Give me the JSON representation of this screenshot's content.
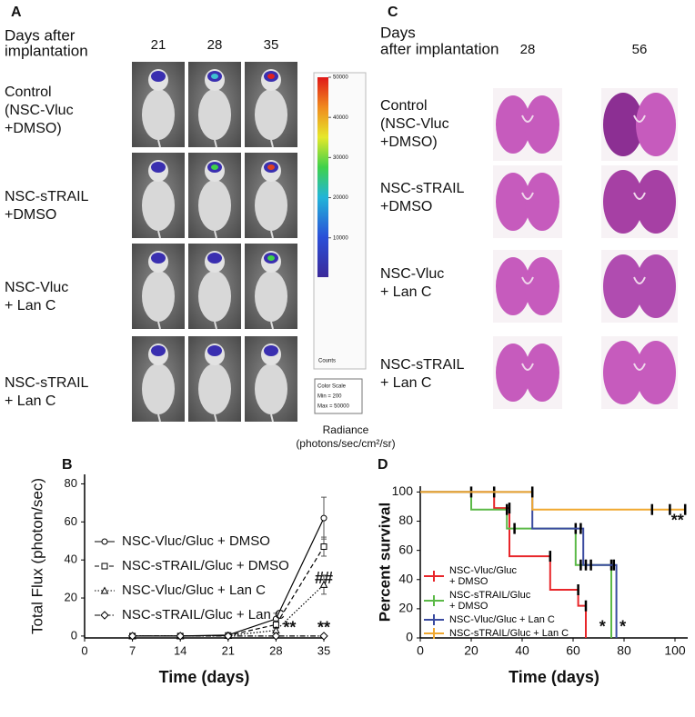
{
  "panel_a": {
    "letter": "A",
    "header": [
      "Days after",
      "implantation"
    ],
    "columns": [
      "21",
      "28",
      "35"
    ],
    "rows": [
      [
        "Control",
        "(NSC-Vluc",
        "+DMSO)"
      ],
      [
        "NSC-sTRAIL",
        "+DMSO"
      ],
      [
        "NSC-Vluc",
        "+ Lan C"
      ],
      [
        "NSC-sTRAIL",
        "+ Lan C"
      ]
    ],
    "colorbar": {
      "ylim": [
        200,
        50000
      ],
      "yticks": [
        10000,
        20000,
        30000,
        40000,
        50000
      ],
      "unit": "Counts",
      "scale_box": [
        "Color Scale",
        "Min = 200",
        "Max = 50000"
      ],
      "label": [
        "Radiance",
        "(photons/sec/cm²/sr)"
      ]
    }
  },
  "panel_c": {
    "letter": "C",
    "header": [
      "Days",
      "after implantation"
    ],
    "columns": [
      "28",
      "56"
    ],
    "rows": [
      [
        "Control",
        "(NSC-Vluc",
        "+DMSO)"
      ],
      [
        "NSC-sTRAIL",
        "+DMSO"
      ],
      [
        "NSC-Vluc",
        "+ Lan C"
      ],
      [
        "NSC-sTRAIL",
        "+ Lan C"
      ]
    ]
  },
  "chart_data": [
    {
      "type": "line",
      "letter": "B",
      "x_label": "Time (days)",
      "y_label": "Total Flux (photon/sec)",
      "x": [
        7,
        14,
        21,
        28,
        35
      ],
      "xlim": [
        0,
        35
      ],
      "xticks": [
        0,
        7,
        14,
        21,
        28,
        35
      ],
      "ylim": [
        -1,
        85
      ],
      "yticks": [
        0,
        20,
        40,
        60,
        80
      ],
      "series": [
        {
          "name": "NSC-Vluc/Gluc + DMSO",
          "color": "#000000",
          "dash": "solid",
          "marker": "circle",
          "values": [
            0,
            0,
            0.5,
            9,
            62
          ],
          "errors": [
            0,
            0,
            0,
            3,
            11
          ]
        },
        {
          "name": "NSC-sTRAIL/Gluc + DMSO",
          "color": "#000000",
          "dash": "dashed",
          "marker": "square",
          "values": [
            0,
            0,
            0.3,
            6,
            47
          ],
          "errors": [
            0,
            0,
            0,
            2,
            5
          ]
        },
        {
          "name": "NSC-Vluc/Gluc + Lan C",
          "color": "#000000",
          "dash": "dotted",
          "marker": "triangle",
          "values": [
            0,
            0,
            0.2,
            3,
            27
          ],
          "errors": [
            0,
            0,
            0,
            1,
            5
          ]
        },
        {
          "name": "NSC-sTRAIL/Gluc + Lan C",
          "color": "#000000",
          "dash": "dashdot",
          "marker": "diamond",
          "values": [
            0,
            0,
            0,
            0,
            0
          ],
          "errors": [
            0,
            0,
            0,
            0,
            0
          ]
        }
      ],
      "annotations": [
        {
          "text": "##",
          "x": 35,
          "y": 30
        },
        {
          "text": "**",
          "x": 30,
          "y": 4
        },
        {
          "text": "**",
          "x": 35,
          "y": 4
        }
      ]
    },
    {
      "type": "survival",
      "letter": "D",
      "x_label": "Time (days)",
      "y_label": "Percent survival",
      "xlim": [
        0,
        105
      ],
      "xticks": [
        0,
        20,
        40,
        60,
        80,
        100
      ],
      "ylim": [
        0,
        104
      ],
      "yticks": [
        0,
        20,
        40,
        60,
        80,
        100
      ],
      "series": [
        {
          "name": "NSC-Vluc/Gluc\n+ DMSO",
          "color": "#e8262a",
          "x": [
            0,
            29,
            35,
            51,
            62,
            65
          ],
          "values": [
            100,
            89,
            56,
            33,
            22,
            0
          ],
          "censored": [
            29,
            35,
            51,
            62,
            65
          ]
        },
        {
          "name": "NSC-sTRAIL/Gluc\n+ DMSO",
          "color": "#5bb947",
          "x": [
            0,
            20,
            34,
            61,
            75
          ],
          "values": [
            100,
            88,
            75,
            50,
            0
          ],
          "censored": [
            20,
            34,
            37,
            61,
            63,
            75
          ]
        },
        {
          "name": "NSC-Vluc/Gluc + Lan C",
          "color": "#3a4ba0",
          "x": [
            0,
            44,
            64,
            77
          ],
          "values": [
            100,
            75,
            50,
            0
          ],
          "censored": [
            63,
            65,
            67,
            76
          ]
        },
        {
          "name": "NSC-sTRAIL/Gluc + Lan C",
          "color": "#f0a830",
          "x": [
            0,
            44,
            104
          ],
          "values": [
            100,
            88,
            88
          ],
          "censored": [
            44,
            91,
            98,
            104
          ]
        }
      ],
      "annotations": [
        {
          "text": "**",
          "x": 101,
          "y": 80
        },
        {
          "text": "*",
          "x": 71.5,
          "y": 7
        },
        {
          "text": "*",
          "x": 79.5,
          "y": 7
        }
      ]
    }
  ]
}
